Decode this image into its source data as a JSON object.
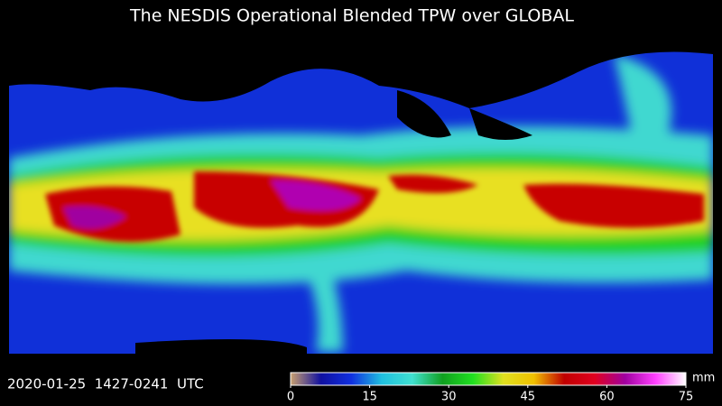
{
  "header": {
    "title": "The NESDIS Operational Blended TPW over GLOBAL"
  },
  "footer": {
    "timestamp": "2020-01-25  1427-0241  UTC"
  },
  "colorbar": {
    "lim": [
      0,
      75
    ],
    "ticks": [
      0,
      15,
      30,
      45,
      60,
      75
    ],
    "unit": "mm",
    "colors": [
      "#c8a070",
      "#1010a0",
      "#1030e0",
      "#20c0e0",
      "#40e0d0",
      "#10a020",
      "#20e020",
      "#e0e020",
      "#f0c000",
      "#c00000",
      "#e00020",
      "#a000a0",
      "#ff40ff",
      "#ffffff"
    ]
  }
}
